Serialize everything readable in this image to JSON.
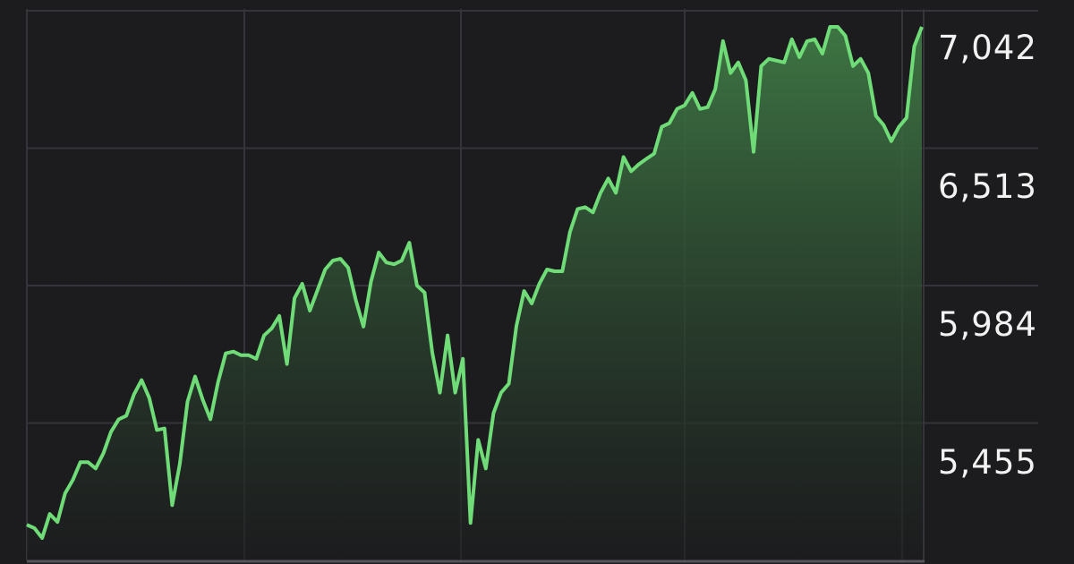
{
  "chart_data": {
    "type": "area",
    "title": "",
    "xlabel": "",
    "ylabel": "",
    "ylim": [
      4926,
      7042
    ],
    "y_ticks": [
      "7,042",
      "6,513",
      "5,984",
      "5,455"
    ],
    "y_tick_values": [
      7042,
      6513,
      5984,
      5455
    ],
    "grid": true,
    "colors": {
      "background": "#1c1c1e",
      "line": "#6fdc78",
      "fill": "#3f7a45",
      "grid": "#34343a",
      "tick_text": "#f2f2f2"
    },
    "values": [
      5063,
      5050,
      5012,
      5105,
      5074,
      5184,
      5235,
      5304,
      5304,
      5280,
      5338,
      5421,
      5469,
      5483,
      5565,
      5620,
      5551,
      5428,
      5434,
      5139,
      5297,
      5537,
      5634,
      5544,
      5469,
      5613,
      5723,
      5730,
      5716,
      5716,
      5702,
      5792,
      5819,
      5867,
      5682,
      5936,
      5991,
      5888,
      5967,
      6046,
      6080,
      6087,
      6053,
      5929,
      5826,
      6001,
      6111,
      6073,
      6066,
      6080,
      6149,
      5984,
      5957,
      5726,
      5572,
      5792,
      5572,
      5702,
      5070,
      5390,
      5280,
      5493,
      5572,
      5606,
      5829,
      5963,
      5915,
      5991,
      6046,
      6039,
      6039,
      6190,
      6279,
      6286,
      6266,
      6341,
      6396,
      6341,
      6479,
      6424,
      6451,
      6472,
      6492,
      6595,
      6609,
      6664,
      6678,
      6726,
      6664,
      6671,
      6740,
      6925,
      6802,
      6843,
      6774,
      6499,
      6829,
      6857,
      6850,
      6843,
      6932,
      6863,
      6925,
      6932,
      6877,
      6980,
      6980,
      6946,
      6829,
      6857,
      6802,
      6637,
      6602,
      6540,
      6595,
      6630,
      6905,
      6980
    ]
  }
}
